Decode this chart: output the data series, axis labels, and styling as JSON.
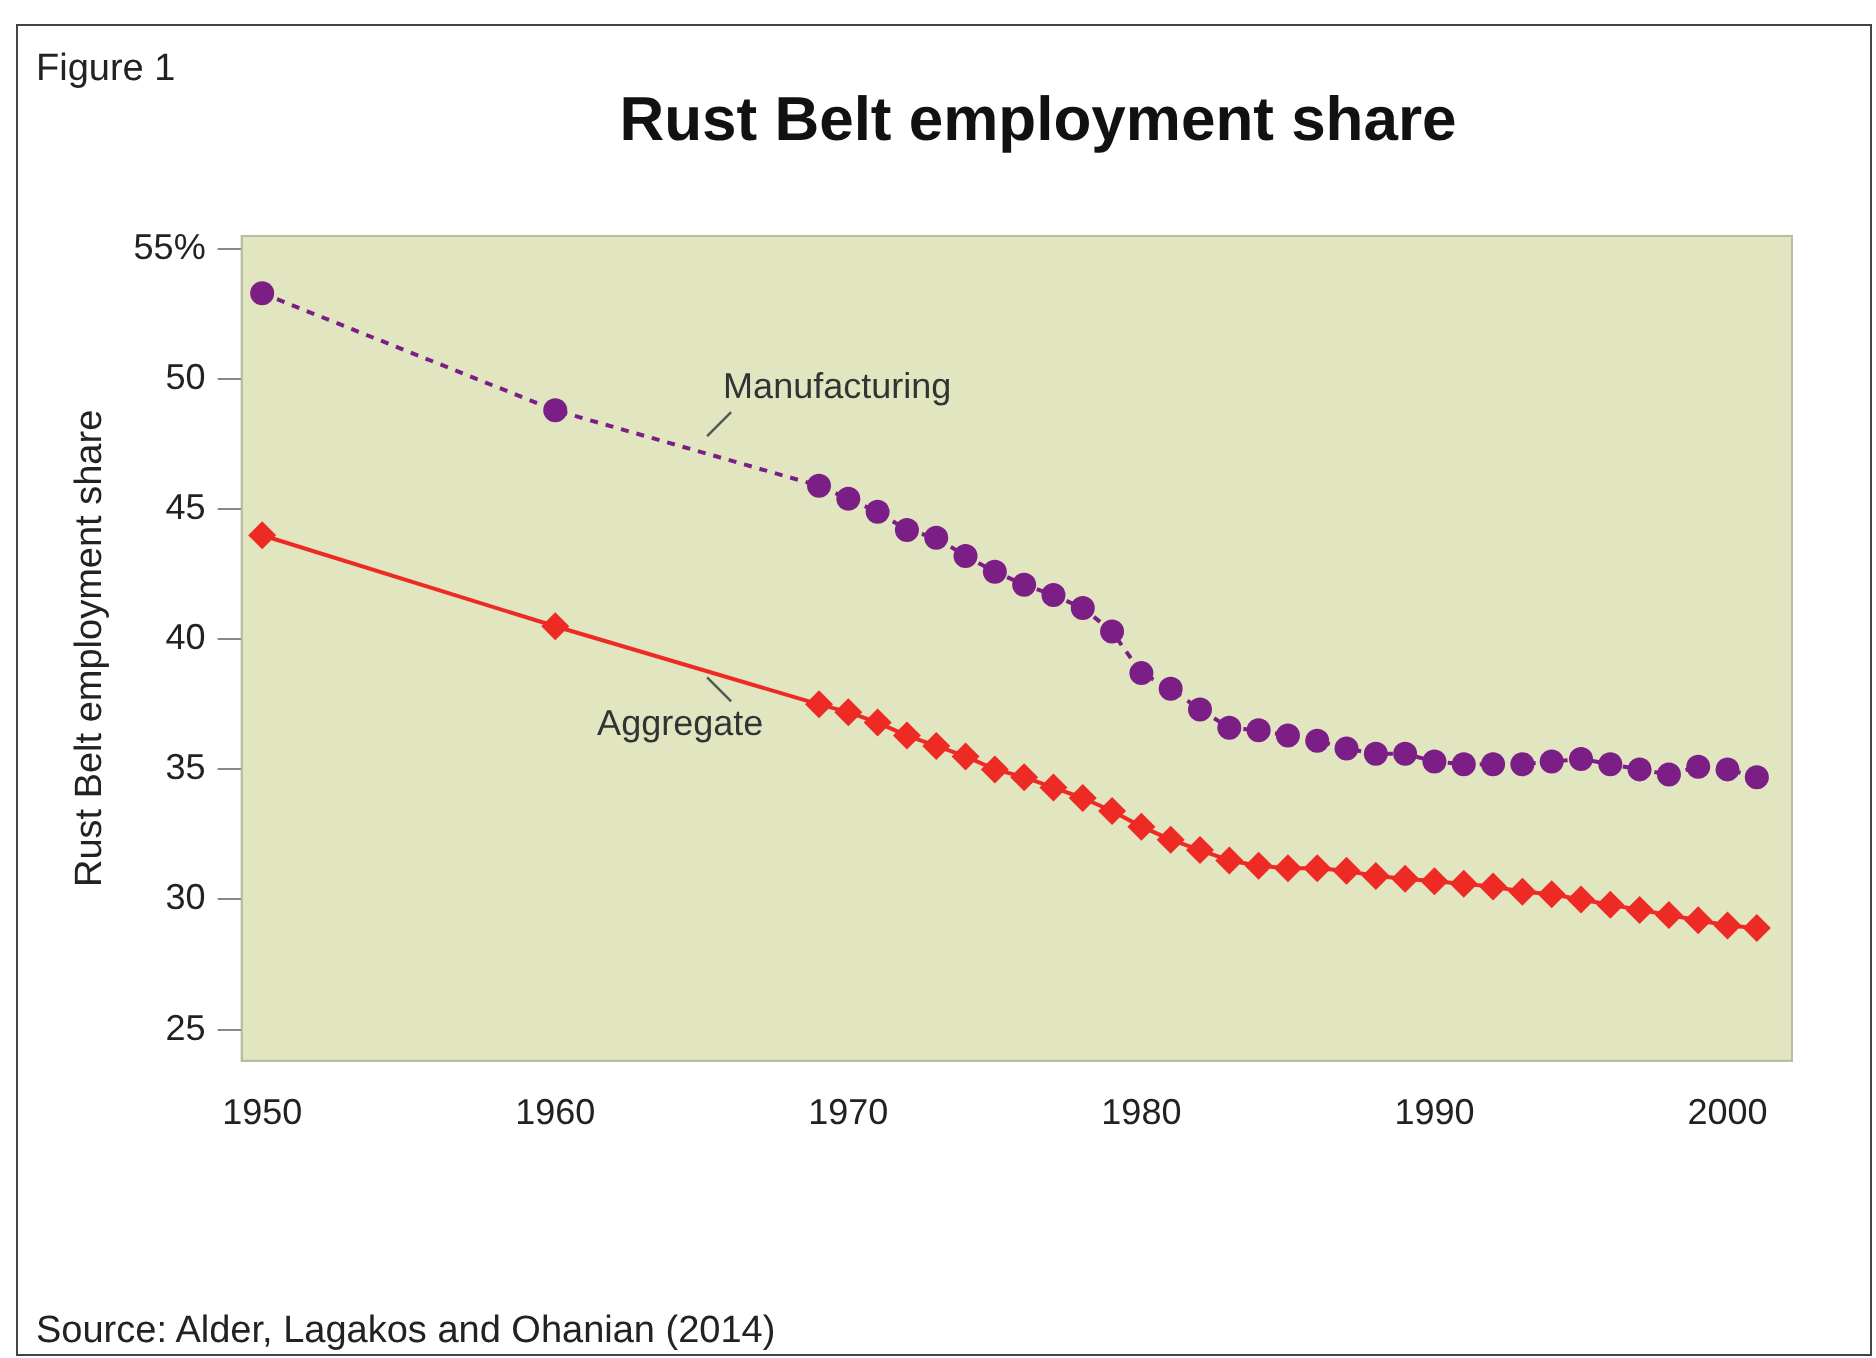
{
  "chart_data": {
    "type": "line",
    "title": "Rust Belt employment share",
    "ylabel": "Rust Belt employment share",
    "annotations": [
      "Figure 1",
      "Source: Alder, Lagakos and Ohanian (2014)"
    ],
    "x": [
      1950,
      1960,
      1969,
      1970,
      1971,
      1972,
      1973,
      1974,
      1975,
      1976,
      1977,
      1978,
      1979,
      1980,
      1981,
      1982,
      1983,
      1984,
      1985,
      1986,
      1987,
      1988,
      1989,
      1990,
      1991,
      1992,
      1993,
      1994,
      1995,
      1996,
      1997,
      1998,
      1999,
      2000,
      2001
    ],
    "series": [
      {
        "name": "Manufacturing",
        "color": "#7b1f87",
        "marker": "circle",
        "line_style": "dotted",
        "values": [
          53.3,
          48.8,
          45.9,
          45.4,
          44.9,
          44.2,
          43.9,
          43.2,
          42.6,
          42.1,
          41.7,
          41.2,
          40.3,
          38.7,
          38.1,
          37.3,
          36.6,
          36.5,
          36.3,
          36.1,
          35.8,
          35.6,
          35.6,
          35.3,
          35.2,
          35.2,
          35.2,
          35.3,
          35.4,
          35.2,
          35.0,
          34.8,
          35.1,
          35.0,
          34.7
        ]
      },
      {
        "name": "Aggregate",
        "color": "#ee2a24",
        "marker": "diamond",
        "line_style": "solid",
        "values": [
          44.0,
          40.5,
          37.5,
          37.2,
          36.8,
          36.3,
          35.9,
          35.5,
          35.0,
          34.7,
          34.3,
          33.9,
          33.4,
          32.8,
          32.3,
          31.9,
          31.5,
          31.3,
          31.2,
          31.2,
          31.1,
          30.9,
          30.8,
          30.7,
          30.6,
          30.5,
          30.3,
          30.2,
          30.0,
          29.8,
          29.6,
          29.4,
          29.2,
          29.0,
          28.9
        ]
      }
    ],
    "xlim": [
      1949.3,
      2002.2
    ],
    "xticks": [
      1950,
      1960,
      1970,
      1980,
      1990,
      2000
    ],
    "ylim": [
      23.8,
      55.5
    ],
    "yticks": [
      25,
      30,
      35,
      40,
      45,
      50,
      {
        "value": 55,
        "label": "55%"
      }
    ],
    "grid": false,
    "legend": false
  }
}
